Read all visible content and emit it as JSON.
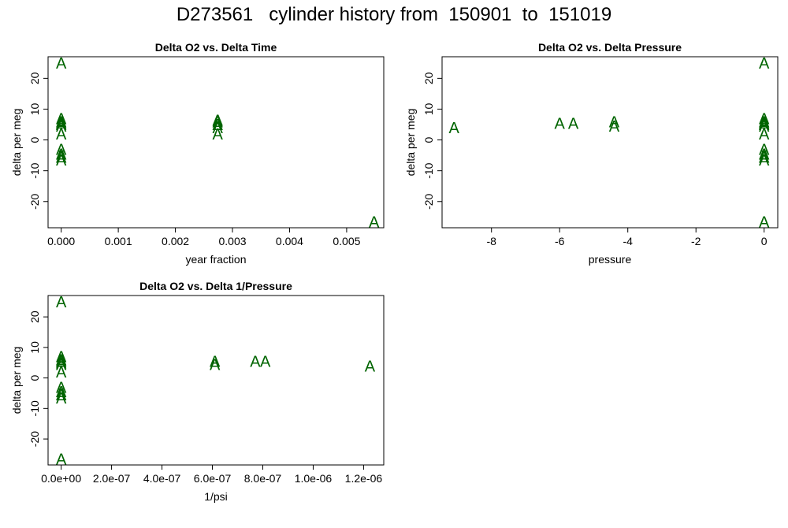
{
  "title": "D273561   cylinder history from  150901  to  151019",
  "marker_color": "#006400",
  "chart_data": [
    {
      "type": "scatter",
      "title": "Delta O2 vs. Delta Time",
      "xlabel": "year fraction",
      "ylabel": "delta per meg",
      "marker": "A",
      "xlim": [
        -0.00023,
        0.00565
      ],
      "ylim": [
        -28.5,
        27
      ],
      "xticks": [
        0,
        0.001,
        0.002,
        0.003,
        0.004,
        0.005
      ],
      "xtick_labels": [
        "0.000",
        "0.001",
        "0.002",
        "0.003",
        "0.004",
        "0.005"
      ],
      "yticks": [
        -20,
        -10,
        0,
        10,
        20
      ],
      "ytick_labels": [
        "-20",
        "-10",
        "0",
        "10",
        "20"
      ],
      "points": [
        {
          "x": 0,
          "y": 25
        },
        {
          "x": 0,
          "y": 7
        },
        {
          "x": 0,
          "y": 6
        },
        {
          "x": 0,
          "y": 5.5
        },
        {
          "x": 0,
          "y": 5
        },
        {
          "x": 0,
          "y": 4.5
        },
        {
          "x": 0,
          "y": 2
        },
        {
          "x": 0,
          "y": -3
        },
        {
          "x": 0,
          "y": -4.5
        },
        {
          "x": 0,
          "y": -5.5
        },
        {
          "x": 0,
          "y": -6.5
        },
        {
          "x": 0.00274,
          "y": 6.5
        },
        {
          "x": 0.00274,
          "y": 6
        },
        {
          "x": 0.00274,
          "y": 5
        },
        {
          "x": 0.00274,
          "y": 4
        },
        {
          "x": 0.00274,
          "y": 2
        },
        {
          "x": 0.00548,
          "y": -26.5
        }
      ]
    },
    {
      "type": "scatter",
      "title": "Delta O2 vs. Delta Pressure",
      "xlabel": "pressure",
      "ylabel": "delta per meg",
      "marker": "A",
      "xlim": [
        -9.45,
        0.4
      ],
      "ylim": [
        -28.5,
        27
      ],
      "xticks": [
        -8,
        -6,
        -4,
        -2,
        0
      ],
      "xtick_labels": [
        "-8",
        "-6",
        "-4",
        "-2",
        "0"
      ],
      "yticks": [
        -20,
        -10,
        0,
        10,
        20
      ],
      "ytick_labels": [
        "-20",
        "-10",
        "0",
        "10",
        "20"
      ],
      "points": [
        {
          "x": -9.1,
          "y": 4
        },
        {
          "x": -6.0,
          "y": 5.5
        },
        {
          "x": -5.6,
          "y": 5.5
        },
        {
          "x": -4.4,
          "y": 6
        },
        {
          "x": -4.4,
          "y": 4.5
        },
        {
          "x": 0,
          "y": 25
        },
        {
          "x": 0,
          "y": 7
        },
        {
          "x": 0,
          "y": 6
        },
        {
          "x": 0,
          "y": 5.5
        },
        {
          "x": 0,
          "y": 5
        },
        {
          "x": 0,
          "y": 4.5
        },
        {
          "x": 0,
          "y": 2
        },
        {
          "x": 0,
          "y": -3
        },
        {
          "x": 0,
          "y": -4.5
        },
        {
          "x": 0,
          "y": -5.5
        },
        {
          "x": 0,
          "y": -6.5
        },
        {
          "x": 0,
          "y": -26.5
        }
      ]
    },
    {
      "type": "scatter",
      "title": "Delta O2 vs. Delta 1/Pressure",
      "xlabel": "1/psi",
      "ylabel": "delta per meg",
      "marker": "A",
      "xlim": [
        -5.2e-08,
        1.28e-06
      ],
      "ylim": [
        -28.5,
        27
      ],
      "xticks": [
        0,
        2e-07,
        4e-07,
        6e-07,
        8e-07,
        1e-06,
        1.2e-06
      ],
      "xtick_labels": [
        "0.0e+00",
        "2.0e-07",
        "4.0e-07",
        "6.0e-07",
        "8.0e-07",
        "1.0e-06",
        "1.2e-06"
      ],
      "yticks": [
        -20,
        -10,
        0,
        10,
        20
      ],
      "ytick_labels": [
        "-20",
        "-10",
        "0",
        "10",
        "20"
      ],
      "points": [
        {
          "x": 0,
          "y": 25
        },
        {
          "x": 0,
          "y": 7
        },
        {
          "x": 0,
          "y": 6
        },
        {
          "x": 0,
          "y": 5.5
        },
        {
          "x": 0,
          "y": 5
        },
        {
          "x": 0,
          "y": 4.5
        },
        {
          "x": 0,
          "y": 2
        },
        {
          "x": 0,
          "y": -3
        },
        {
          "x": 0,
          "y": -4.5
        },
        {
          "x": 0,
          "y": -5.5
        },
        {
          "x": 0,
          "y": -6.5
        },
        {
          "x": 0,
          "y": -26.5
        },
        {
          "x": 6.1e-07,
          "y": 5.5
        },
        {
          "x": 6.1e-07,
          "y": 4.5
        },
        {
          "x": 7.7e-07,
          "y": 5.5
        },
        {
          "x": 8.1e-07,
          "y": 5.5
        },
        {
          "x": 1.225e-06,
          "y": 4
        }
      ]
    }
  ]
}
